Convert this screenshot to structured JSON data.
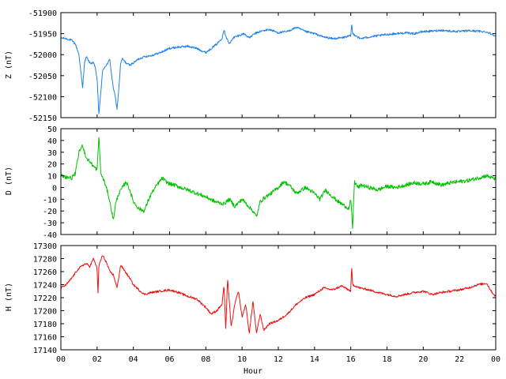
{
  "chart_data": {
    "type": "line",
    "panels": [
      {
        "ylabel": "Z (nT)",
        "ylim": [
          -52150,
          -51900
        ],
        "yticks": [
          -51900,
          -51950,
          -52000,
          -52050,
          -52100,
          -52150
        ],
        "color": "#1e82e6",
        "series": [
          {
            "x": [
              0,
              0.3,
              0.6,
              0.8,
              1.0,
              1.1,
              1.2,
              1.3,
              1.4,
              1.6,
              1.8,
              1.9,
              2.0,
              2.05,
              2.1,
              2.2,
              2.3,
              2.4,
              2.5,
              2.6,
              2.7,
              2.8,
              2.9,
              3.0,
              3.1,
              3.2,
              3.3,
              3.4,
              3.6,
              3.8,
              4.0,
              4.3,
              4.6,
              5.0,
              5.5,
              6.0,
              6.5,
              7.0,
              7.5,
              8.0,
              8.3,
              8.6,
              8.9,
              9.0,
              9.1,
              9.3,
              9.5,
              9.8,
              10.1,
              10.4,
              10.7,
              11.0,
              11.5,
              12.0,
              12.5,
              13.0,
              13.5,
              14.0,
              14.5,
              15.0,
              15.5,
              16.0,
              16.05,
              16.1,
              16.3,
              16.5,
              17.0,
              17.5,
              18.0,
              18.5,
              19.0,
              19.5,
              20.0,
              20.5,
              21.0,
              21.5,
              22.0,
              22.5,
              23.0,
              23.5,
              24.0
            ],
            "values": [
              -51960,
              -51962,
              -51966,
              -51975,
              -52000,
              -52040,
              -52080,
              -52020,
              -52005,
              -52020,
              -52020,
              -52030,
              -52060,
              -52100,
              -52145,
              -52090,
              -52040,
              -52030,
              -52025,
              -52020,
              -52010,
              -52050,
              -52080,
              -52100,
              -52130,
              -52080,
              -52020,
              -52010,
              -52020,
              -52025,
              -52020,
              -52010,
              -52005,
              -52002,
              -51995,
              -51985,
              -51982,
              -51980,
              -51985,
              -51995,
              -51985,
              -51975,
              -51960,
              -51940,
              -51955,
              -51975,
              -51960,
              -51955,
              -51950,
              -51960,
              -51950,
              -51945,
              -51940,
              -51948,
              -51945,
              -51935,
              -51945,
              -51950,
              -51958,
              -51962,
              -51960,
              -51955,
              -51925,
              -51950,
              -51955,
              -51962,
              -51958,
              -51955,
              -51952,
              -51950,
              -51948,
              -51950,
              -51945,
              -51944,
              -51942,
              -51944,
              -51945,
              -51943,
              -51944,
              -51946,
              -51955
            ]
          }
        ]
      },
      {
        "ylabel": "D (nT)",
        "ylim": [
          -40,
          50
        ],
        "yticks": [
          50,
          40,
          30,
          20,
          10,
          0,
          -10,
          -20,
          -30,
          -40
        ],
        "color": "#00c400",
        "series": [
          {
            "x": [
              0,
              0.3,
              0.6,
              0.8,
              1.0,
              1.2,
              1.4,
              1.6,
              1.8,
              2.0,
              2.1,
              2.2,
              2.4,
              2.6,
              2.8,
              2.9,
              3.0,
              3.1,
              3.2,
              3.4,
              3.6,
              3.8,
              4.0,
              4.3,
              4.6,
              4.8,
              5.0,
              5.3,
              5.6,
              5.8,
              6.0,
              6.3,
              6.6,
              7.0,
              7.5,
              8.0,
              8.5,
              9.0,
              9.3,
              9.6,
              10.0,
              10.3,
              10.6,
              10.8,
              11.0,
              11.3,
              11.6,
              12.0,
              12.3,
              12.6,
              13.0,
              13.5,
              14.0,
              14.3,
              14.6,
              15.0,
              15.3,
              15.6,
              15.9,
              16.0,
              16.1,
              16.2,
              16.4,
              16.6,
              17.0,
              17.5,
              18.0,
              18.5,
              19.0,
              19.5,
              20.0,
              20.5,
              21.0,
              21.5,
              22.0,
              22.5,
              23.0,
              23.5,
              24.0
            ],
            "values": [
              10,
              9,
              8,
              12,
              30,
              36,
              25,
              22,
              18,
              15,
              44,
              12,
              5,
              -5,
              -20,
              -28,
              -15,
              -10,
              -5,
              0,
              5,
              -2,
              -12,
              -18,
              -20,
              -12,
              -5,
              2,
              8,
              5,
              3,
              2,
              0,
              -2,
              -5,
              -8,
              -12,
              -14,
              -10,
              -16,
              -10,
              -15,
              -20,
              -25,
              -12,
              -8,
              -5,
              0,
              5,
              2,
              -5,
              0,
              -5,
              -10,
              -2,
              -8,
              -12,
              -15,
              -18,
              -10,
              -35,
              5,
              0,
              2,
              0,
              -2,
              1,
              0,
              2,
              4,
              3,
              5,
              2,
              4,
              5,
              6,
              8,
              10,
              7
            ]
          }
        ]
      },
      {
        "ylabel": "H (nT)",
        "ylim": [
          17140,
          17300
        ],
        "yticks": [
          17300,
          17280,
          17260,
          17240,
          17220,
          17200,
          17180,
          17160,
          17140
        ],
        "color": "#f01010",
        "series": [
          {
            "x": [
              0,
              0.3,
              0.6,
              0.9,
              1.2,
              1.4,
              1.6,
              1.8,
              2.0,
              2.05,
              2.1,
              2.3,
              2.5,
              2.7,
              2.9,
              3.1,
              3.3,
              3.5,
              3.8,
              4.0,
              4.3,
              4.6,
              5.0,
              5.5,
              6.0,
              6.5,
              7.0,
              7.5,
              8.0,
              8.3,
              8.6,
              8.9,
              9.0,
              9.1,
              9.2,
              9.4,
              9.6,
              9.8,
              10.0,
              10.2,
              10.4,
              10.6,
              10.8,
              11.0,
              11.2,
              11.5,
              12.0,
              12.5,
              13.0,
              13.5,
              14.0,
              14.5,
              15.0,
              15.5,
              16.0,
              16.05,
              16.1,
              16.5,
              17.0,
              17.5,
              18.0,
              18.5,
              19.0,
              19.5,
              20.0,
              20.5,
              21.0,
              21.5,
              22.0,
              22.5,
              23.0,
              23.5,
              23.8,
              24.0
            ],
            "values": [
              17235,
              17240,
              17250,
              17262,
              17270,
              17272,
              17268,
              17280,
              17265,
              17225,
              17270,
              17285,
              17275,
              17260,
              17255,
              17235,
              17270,
              17262,
              17250,
              17240,
              17232,
              17225,
              17228,
              17230,
              17232,
              17228,
              17222,
              17218,
              17205,
              17195,
              17200,
              17210,
              17240,
              17170,
              17250,
              17175,
              17210,
              17230,
              17190,
              17210,
              17165,
              17215,
              17165,
              17195,
              17170,
              17180,
              17185,
              17195,
              17210,
              17220,
              17225,
              17235,
              17232,
              17238,
              17230,
              17268,
              17240,
              17235,
              17232,
              17228,
              17225,
              17222,
              17225,
              17228,
              17230,
              17225,
              17228,
              17230,
              17232,
              17235,
              17240,
              17242,
              17228,
              17222
            ]
          }
        ]
      }
    ],
    "x_ticks": [
      "00",
      "02",
      "04",
      "06",
      "08",
      "10",
      "12",
      "14",
      "16",
      "18",
      "20",
      "22",
      "00"
    ],
    "xlim": [
      0,
      24
    ],
    "xlabel": "Hour",
    "grid": false,
    "legend": "none"
  }
}
